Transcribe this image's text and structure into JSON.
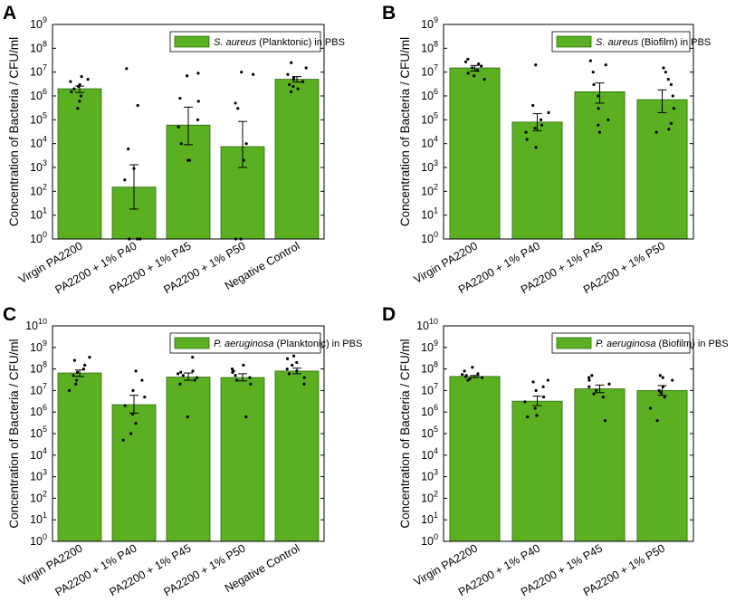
{
  "colors": {
    "bar": "#5ab020",
    "bar_edge": "#2f6b10",
    "dot": "#000000",
    "axis": "#000000"
  },
  "common": {
    "ylabel": "Concentration of Bacteria / CFU/ml"
  },
  "chart_data": [
    {
      "panel": "A",
      "type": "bar",
      "scale": "log10",
      "ylim_exp": [
        0,
        9
      ],
      "legend": {
        "species": "S. aureus",
        "suffix": " (Planktonic) in PBS"
      },
      "categories": [
        "Virgin PA2200",
        "PA2200 + 1% P40",
        "PA2200 + 1% P45",
        "PA2200 + 1% P50",
        "Negative Control"
      ],
      "values": [
        2000000,
        150,
        60000,
        7500,
        5000000
      ],
      "err_low": [
        1400000,
        18,
        9000,
        1000,
        3800000
      ],
      "err_high": [
        2600000,
        1300,
        340000,
        85000,
        6500000
      ],
      "points": [
        [
          600000,
          1000000,
          1500000,
          2000000,
          2500000,
          3000000,
          4000000,
          5000000,
          6500000,
          300000
        ],
        [
          1,
          1,
          1,
          300,
          900,
          6000,
          400000,
          14000000
        ],
        [
          2000,
          2000,
          10000,
          50000,
          100000,
          600000,
          800000,
          7000000,
          9000000
        ],
        [
          1,
          1,
          2000,
          10000,
          300000,
          500000,
          8000000,
          10000000
        ],
        [
          1500000,
          2000000,
          2500000,
          3000000,
          4000000,
          5000000,
          6000000,
          8000000,
          15000000,
          25000000
        ]
      ]
    },
    {
      "panel": "B",
      "type": "bar",
      "scale": "log10",
      "ylim_exp": [
        0,
        9
      ],
      "legend": {
        "species": "S. aureus",
        "suffix": " (Biofilm) in PBS"
      },
      "categories": [
        "Virgin PA2200",
        "PA2200 + 1% P40",
        "PA2200 + 1% P45",
        "PA2200 + 1% P50"
      ],
      "values": [
        15000000,
        80000,
        1500000,
        700000
      ],
      "err_low": [
        11000000,
        35000,
        500000,
        200000
      ],
      "err_high": [
        19000000,
        180000,
        3500000,
        1800000
      ],
      "points": [
        [
          5000000,
          7000000,
          9000000,
          12000000,
          15000000,
          18000000,
          22000000,
          27000000,
          35000000
        ],
        [
          7000,
          15000,
          30000,
          45000,
          60000,
          100000,
          200000,
          400000,
          20000000
        ],
        [
          30000,
          60000,
          100000,
          300000,
          1000000,
          3000000,
          10000000,
          20000000,
          30000000
        ],
        [
          30000,
          40000,
          70000,
          300000,
          1000000,
          3000000,
          5000000,
          10000000,
          15000000
        ]
      ]
    },
    {
      "panel": "C",
      "type": "bar",
      "scale": "log10",
      "ylim_exp": [
        0,
        10
      ],
      "legend": {
        "species": "P. aeruginosa",
        "suffix": " (Planktonic) in PBS"
      },
      "categories": [
        "Virgin PA2200",
        "PA2200 + 1% P40",
        "PA2200 + 1% P45",
        "PA2200 + 1% P50",
        "Negative Control"
      ],
      "values": [
        65000000,
        2200000,
        42000000,
        40000000,
        80000000
      ],
      "err_low": [
        45000000,
        900000,
        30000000,
        28000000,
        60000000
      ],
      "err_high": [
        90000000,
        6000000,
        65000000,
        60000000,
        110000000
      ],
      "points": [
        [
          10000000,
          20000000,
          30000000,
          50000000,
          70000000,
          100000000,
          150000000,
          250000000,
          350000000
        ],
        [
          50000,
          100000,
          300000,
          800000,
          2000000,
          5000000,
          10000000,
          30000000,
          80000000
        ],
        [
          600000,
          20000000,
          30000000,
          40000000,
          50000000,
          60000000,
          70000000,
          80000000,
          350000000
        ],
        [
          600000,
          20000000,
          30000000,
          40000000,
          50000000,
          70000000,
          80000000,
          100000000,
          150000000
        ],
        [
          20000000,
          40000000,
          60000000,
          80000000,
          100000000,
          150000000,
          200000000,
          300000000,
          400000000
        ]
      ]
    },
    {
      "panel": "D",
      "type": "bar",
      "scale": "log10",
      "ylim_exp": [
        0,
        10
      ],
      "legend": {
        "species": "P. aeruginosa",
        "suffix": " (Biofilm) in PBS"
      },
      "categories": [
        "Virgin PA2200",
        "PA2200 + 1% P40",
        "PA2200 + 1% P45",
        "PA2200 + 1% P50"
      ],
      "values": [
        45000000,
        3200000,
        12000000,
        10000000
      ],
      "err_low": [
        40000000,
        2000000,
        8000000,
        6000000
      ],
      "err_high": [
        50000000,
        5500000,
        18000000,
        17000000
      ],
      "points": [
        [
          30000000,
          35000000,
          40000000,
          45000000,
          50000000,
          55000000,
          60000000,
          80000000,
          120000000
        ],
        [
          600000,
          700000,
          1500000,
          3000000,
          5000000,
          10000000,
          15000000,
          25000000,
          30000000
        ],
        [
          400000,
          5000000,
          7000000,
          10000000,
          15000000,
          20000000,
          30000000,
          40000000,
          50000000
        ],
        [
          400000,
          1500000,
          5000000,
          8000000,
          10000000,
          15000000,
          30000000,
          40000000,
          50000000
        ]
      ]
    }
  ]
}
